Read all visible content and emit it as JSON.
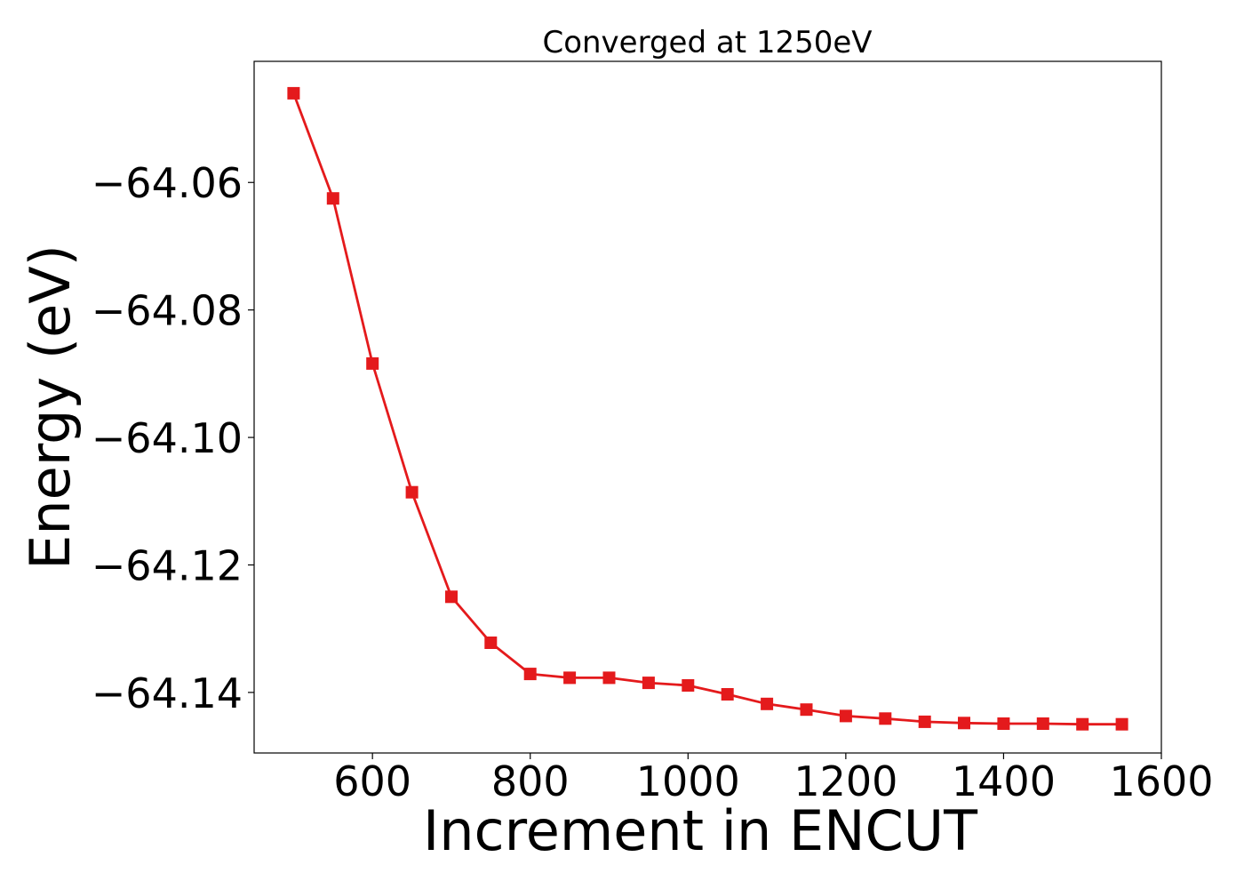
{
  "chart_data": {
    "type": "line",
    "title": "Converged at 1250eV",
    "xlabel": "Increment in ENCUT",
    "ylabel": "Energy (eV)",
    "xlim": [
      450,
      1600
    ],
    "ylim": [
      -64.1495,
      -64.041
    ],
    "x_ticks": [
      {
        "value": 600,
        "label": "600"
      },
      {
        "value": 800,
        "label": "800"
      },
      {
        "value": 1000,
        "label": "1000"
      },
      {
        "value": 1200,
        "label": "1200"
      },
      {
        "value": 1400,
        "label": "1400"
      },
      {
        "value": 1600,
        "label": "1600"
      }
    ],
    "y_ticks": [
      {
        "value": -64.06,
        "label": "−64.06"
      },
      {
        "value": -64.08,
        "label": "−64.08"
      },
      {
        "value": -64.1,
        "label": "−64.10"
      },
      {
        "value": -64.12,
        "label": "−64.12"
      },
      {
        "value": -64.14,
        "label": "−64.14"
      }
    ],
    "grid": false,
    "legend": "none",
    "series": [
      {
        "color": "#e41a1c",
        "marker": "square",
        "x": [
          500,
          550,
          600,
          650,
          700,
          750,
          800,
          850,
          900,
          950,
          1000,
          1050,
          1100,
          1150,
          1200,
          1250,
          1300,
          1350,
          1400,
          1450,
          1500,
          1550
        ],
        "y": [
          -64.046,
          -64.0625,
          -64.0884,
          -64.1086,
          -64.125,
          -64.1322,
          -64.1371,
          -64.1377,
          -64.1377,
          -64.1385,
          -64.1389,
          -64.1403,
          -64.1418,
          -64.1427,
          -64.1437,
          -64.1441,
          -64.1446,
          -64.1448,
          -64.1449,
          -64.1449,
          -64.145,
          -64.145
        ]
      }
    ]
  }
}
